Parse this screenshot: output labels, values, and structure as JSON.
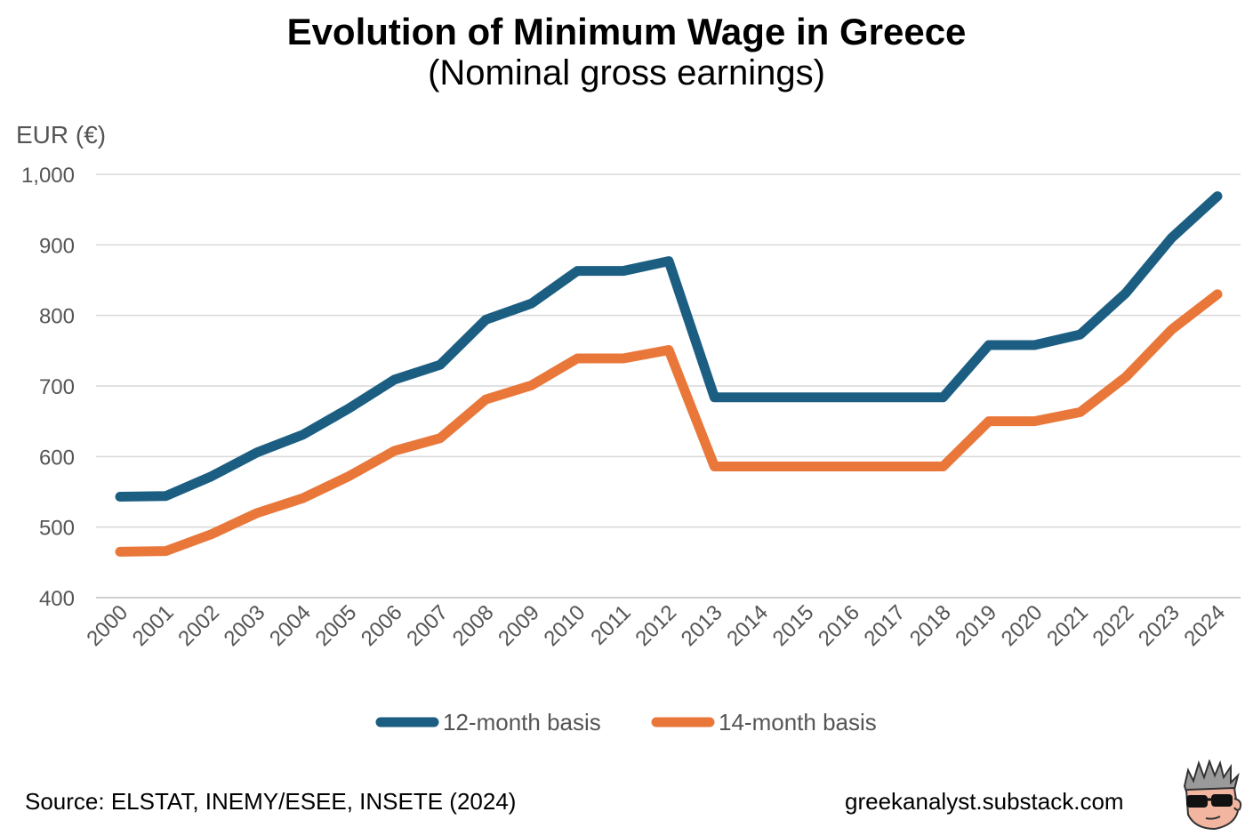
{
  "title": "Evolution of Minimum Wage in Greece",
  "subtitle": "(Nominal gross earnings)",
  "source": "Source: ELSTAT, INEMY/ESEE, INSETE (2024)",
  "website": "greekanalyst.substack.com",
  "chart_data": {
    "type": "line",
    "title": "Evolution of Minimum Wage in Greece",
    "subtitle": "(Nominal gross earnings)",
    "ylabel": "EUR (€)",
    "xlabel": "",
    "ylim": [
      400,
      1000
    ],
    "yticks": [
      400,
      500,
      600,
      700,
      800,
      900,
      1000
    ],
    "ytick_labels": [
      "400",
      "500",
      "600",
      "700",
      "800",
      "900",
      "1,000"
    ],
    "grid": true,
    "legend_position": "bottom-center",
    "categories": [
      "2000",
      "2001",
      "2002",
      "2003",
      "2004",
      "2005",
      "2006",
      "2007",
      "2008",
      "2009",
      "2010",
      "2011",
      "2012",
      "2013",
      "2014",
      "2015",
      "2016",
      "2017",
      "2018",
      "2019",
      "2020",
      "2021",
      "2022",
      "2023",
      "2024"
    ],
    "series": [
      {
        "name": "12-month basis",
        "color": "#1B5E82",
        "values": [
          543,
          544,
          572,
          606,
          631,
          668,
          709,
          730,
          794,
          817,
          863,
          863,
          877,
          684,
          684,
          684,
          684,
          684,
          684,
          758,
          758,
          773,
          832,
          910,
          969
        ]
      },
      {
        "name": "14-month basis",
        "color": "#E9773A",
        "values": [
          465,
          466,
          490,
          520,
          541,
          572,
          608,
          626,
          681,
          701,
          739,
          739,
          751,
          586,
          586,
          586,
          586,
          586,
          586,
          650,
          650,
          663,
          713,
          780,
          830
        ]
      }
    ]
  }
}
